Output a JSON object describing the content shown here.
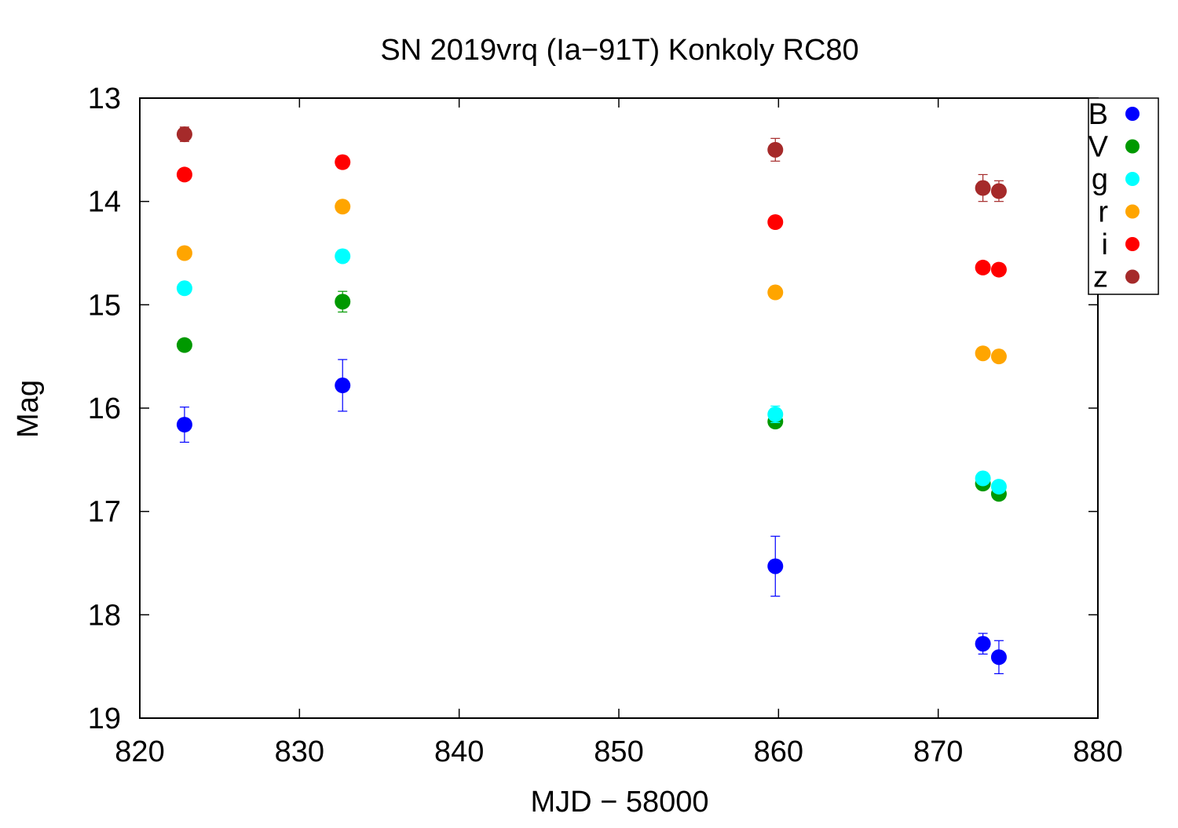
{
  "chart_data": {
    "type": "scatter",
    "title": "SN 2019vrq (Ia−91T) Konkoly RC80",
    "xlabel": "MJD − 58000",
    "ylabel": "Mag",
    "xlim": [
      820,
      880
    ],
    "ylim": [
      13,
      19
    ],
    "y_inverted": true,
    "grid": false,
    "legend_position": "top-right",
    "x_ticks": [
      820,
      830,
      840,
      850,
      860,
      870,
      880
    ],
    "y_ticks": [
      13,
      14,
      15,
      16,
      17,
      18,
      19
    ],
    "series": [
      {
        "name": "B",
        "color": "#0000ff",
        "points": [
          {
            "x": 822.8,
            "y": 16.16,
            "err": 0.17
          },
          {
            "x": 832.7,
            "y": 15.78,
            "err": 0.25
          },
          {
            "x": 859.8,
            "y": 17.53,
            "err": 0.29
          },
          {
            "x": 872.8,
            "y": 18.28,
            "err": 0.1
          },
          {
            "x": 873.8,
            "y": 18.41,
            "err": 0.16
          }
        ]
      },
      {
        "name": "V",
        "color": "#009900",
        "points": [
          {
            "x": 822.8,
            "y": 15.39,
            "err": 0.03
          },
          {
            "x": 832.7,
            "y": 14.97,
            "err": 0.1
          },
          {
            "x": 859.8,
            "y": 16.13,
            "err": 0.04
          },
          {
            "x": 872.8,
            "y": 16.73,
            "err": 0.03
          },
          {
            "x": 873.8,
            "y": 16.83,
            "err": 0.03
          }
        ]
      },
      {
        "name": "g",
        "color": "#00ffff",
        "points": [
          {
            "x": 822.8,
            "y": 14.84,
            "err": 0.02
          },
          {
            "x": 832.7,
            "y": 14.53,
            "err": 0.06
          },
          {
            "x": 859.8,
            "y": 16.06,
            "err": 0.08
          },
          {
            "x": 872.8,
            "y": 16.68,
            "err": 0.04
          },
          {
            "x": 873.8,
            "y": 16.76,
            "err": 0.03
          }
        ]
      },
      {
        "name": "r",
        "color": "#ffa500",
        "points": [
          {
            "x": 822.8,
            "y": 14.5,
            "err": 0.02
          },
          {
            "x": 832.7,
            "y": 14.05,
            "err": 0.02
          },
          {
            "x": 859.8,
            "y": 14.88,
            "err": 0.02
          },
          {
            "x": 872.8,
            "y": 15.47,
            "err": 0.02
          },
          {
            "x": 873.8,
            "y": 15.5,
            "err": 0.02
          }
        ]
      },
      {
        "name": "i",
        "color": "#ff0000",
        "points": [
          {
            "x": 822.8,
            "y": 13.74,
            "err": 0.02
          },
          {
            "x": 832.7,
            "y": 13.62,
            "err": 0.06
          },
          {
            "x": 859.8,
            "y": 14.2,
            "err": 0.02
          },
          {
            "x": 872.8,
            "y": 14.64,
            "err": 0.02
          },
          {
            "x": 873.8,
            "y": 14.66,
            "err": 0.02
          }
        ]
      },
      {
        "name": "z",
        "color": "#a52a2a",
        "points": [
          {
            "x": 822.8,
            "y": 13.35,
            "err": 0.07
          },
          {
            "x": 859.8,
            "y": 13.5,
            "err": 0.11
          },
          {
            "x": 872.8,
            "y": 13.87,
            "err": 0.13
          },
          {
            "x": 873.8,
            "y": 13.9,
            "err": 0.1
          }
        ]
      }
    ]
  }
}
